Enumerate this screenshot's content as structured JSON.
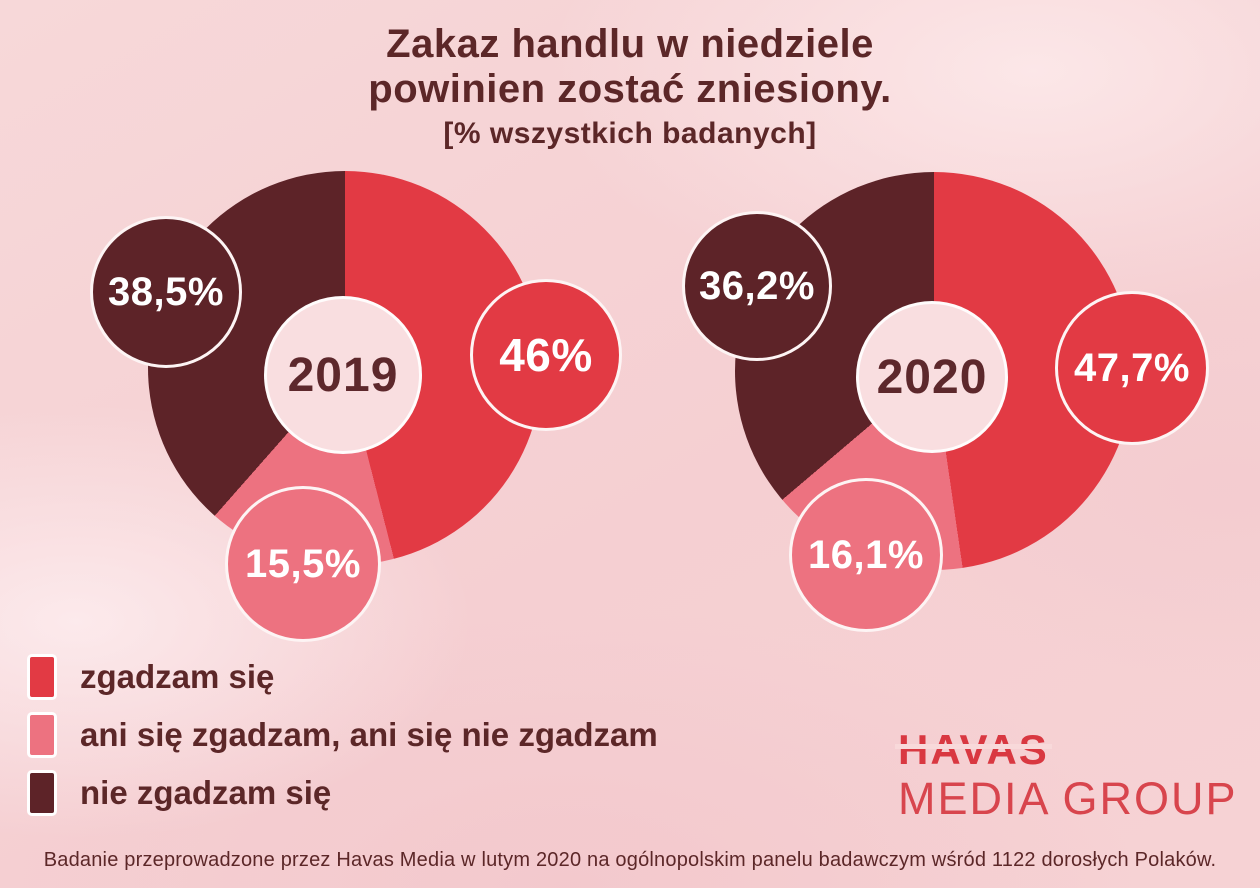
{
  "page": {
    "title_line1": "Zakaz handlu w niedziele",
    "title_line2": "powinien zostać zniesiony.",
    "subtitle": "[% wszystkich badanych]"
  },
  "chart_data": [
    {
      "type": "pie",
      "donut": true,
      "title": "2019",
      "center_label": "2019",
      "categories": [
        "zgadzam się",
        "ani się zgadzam, ani się nie zgadzam",
        "nie zgadzam się"
      ],
      "values": [
        46,
        15.5,
        38.5
      ],
      "display_values": [
        "46%",
        "15,5%",
        "38,5%"
      ],
      "colors": [
        "#e23a44",
        "#ed7280",
        "#5d2328"
      ],
      "unit": "% wszystkich badanych",
      "start_angle_deg": 0,
      "direction": "clockwise",
      "legend_position": "bottom-left"
    },
    {
      "type": "pie",
      "donut": true,
      "title": "2020",
      "center_label": "2020",
      "categories": [
        "zgadzam się",
        "ani się zgadzam, ani się nie zgadzam",
        "nie zgadzam się"
      ],
      "values": [
        47.7,
        16.1,
        36.2
      ],
      "display_values": [
        "47,7%",
        "16,1%",
        "36,2%"
      ],
      "colors": [
        "#e23a44",
        "#ed7280",
        "#5d2328"
      ],
      "unit": "% wszystkich badanych",
      "start_angle_deg": 0,
      "direction": "clockwise",
      "legend_position": "bottom-left"
    }
  ],
  "legend": {
    "items": [
      {
        "label": "zgadzam się",
        "color": "#e23a44"
      },
      {
        "label": "ani się zgadzam, ani się nie zgadzam",
        "color": "#ed7280"
      },
      {
        "label": "nie zgadzam się",
        "color": "#5d2328"
      }
    ]
  },
  "logo": {
    "line1": "HAVAS",
    "line2": "MEDIA GROUP",
    "color": "#d93841",
    "color2": "#d8454d"
  },
  "footer": {
    "text": "Badanie przeprowadzone przez Havas Media w lutym 2020 na ogólnopolskim panelu badawczym wśród 1122 dorosłych Polaków."
  },
  "theme": {
    "background": "#f6d3d5",
    "hole": "#f9dee0",
    "text": "#5c2728",
    "bubble_text": "#ffffff"
  }
}
